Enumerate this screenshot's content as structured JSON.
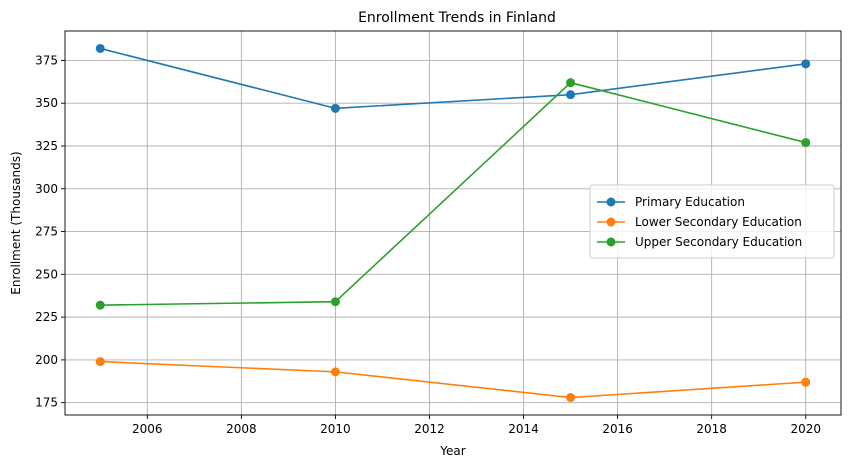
{
  "chart_data": {
    "type": "line",
    "title": "Enrollment Trends in Finland",
    "xlabel": "Year",
    "ylabel": "Enrollment (Thousands)",
    "x": [
      2005,
      2010,
      2015,
      2020
    ],
    "xlim": [
      2004.25,
      2020.75
    ],
    "ylim": [
      167.8,
      392.2
    ],
    "xticks": [
      2006,
      2008,
      2010,
      2012,
      2014,
      2016,
      2018,
      2020
    ],
    "yticks": [
      175,
      200,
      225,
      250,
      275,
      300,
      325,
      350,
      375
    ],
    "grid": true,
    "legend_position": "center-right",
    "series": [
      {
        "name": "Primary Education",
        "color": "#1f77b4",
        "values": [
          382,
          347,
          355,
          373
        ]
      },
      {
        "name": "Lower Secondary Education",
        "color": "#ff7f0e",
        "values": [
          199,
          193,
          178,
          187
        ]
      },
      {
        "name": "Upper Secondary Education",
        "color": "#2ca02c",
        "values": [
          232,
          234,
          362,
          327
        ]
      }
    ]
  }
}
